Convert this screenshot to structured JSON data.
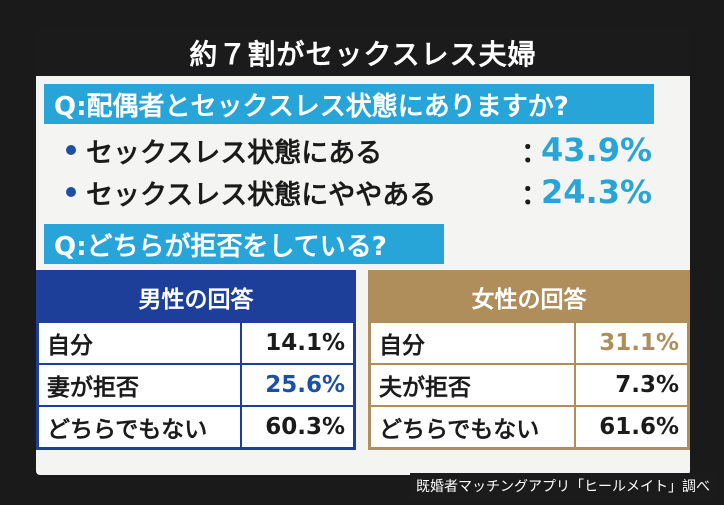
{
  "title": "約７割がセックスレス夫婦",
  "q1": {
    "label": "Q:配偶者とセックスレス状態にありますか?",
    "answers": [
      {
        "label": "セックスレス状態にある",
        "value": "43.9%"
      },
      {
        "label": "セックスレス状態にややある",
        "value": "24.3%"
      }
    ]
  },
  "q2": {
    "label": "Q:どちらが拒否をしている?"
  },
  "male": {
    "header": "男性の回答",
    "rows": [
      {
        "label": "自分",
        "value": "14.1%"
      },
      {
        "label": "妻が拒否",
        "value": "25.6%"
      },
      {
        "label": "どちらでもない",
        "value": "60.3%"
      }
    ]
  },
  "female": {
    "header": "女性の回答",
    "rows": [
      {
        "label": "自分",
        "value": "31.1%"
      },
      {
        "label": "夫が拒否",
        "value": "7.3%"
      },
      {
        "label": "どちらでもない",
        "value": "61.6%"
      }
    ]
  },
  "source": "既婚者マッチングアプリ「ヒールメイト」調べ",
  "colors": {
    "accent_blue": "#28a5d8",
    "male": "#1d3f9a",
    "female": "#b08e5c"
  }
}
